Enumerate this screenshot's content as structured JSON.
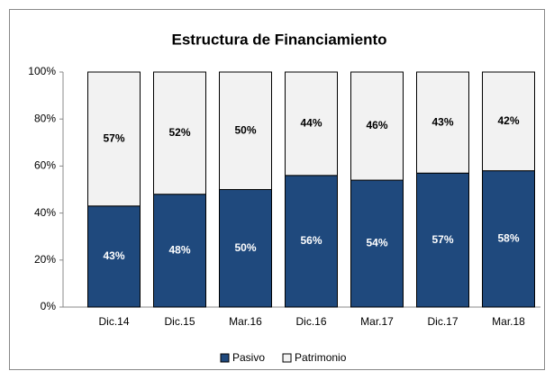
{
  "chart_data": {
    "type": "stacked_bar",
    "title": "Estructura de Financiamiento",
    "categories": [
      "Dic.14",
      "Dic.15",
      "Mar.16",
      "Dic.16",
      "Mar.17",
      "Dic.17",
      "Mar.18"
    ],
    "series": [
      {
        "name": "Pasivo",
        "color": "#1f497d",
        "label_color": "#ffffff",
        "values": [
          43,
          48,
          50,
          56,
          54,
          57,
          58
        ],
        "value_labels": [
          "43%",
          "48%",
          "50%",
          "56%",
          "54%",
          "57%",
          "58%"
        ]
      },
      {
        "name": "Patrimonio",
        "color": "#f2f2f2",
        "label_color": "#000000",
        "values": [
          57,
          52,
          50,
          44,
          46,
          43,
          42
        ],
        "value_labels": [
          "57%",
          "52%",
          "50%",
          "44%",
          "46%",
          "43%",
          "42%"
        ]
      }
    ],
    "ylim": [
      0,
      100
    ],
    "yticks": [
      {
        "value": 0,
        "label": "0%"
      },
      {
        "value": 20,
        "label": "20%"
      },
      {
        "value": 40,
        "label": "40%"
      },
      {
        "value": 60,
        "label": "60%"
      },
      {
        "value": 80,
        "label": "80%"
      },
      {
        "value": 100,
        "label": "100%"
      }
    ],
    "grid": false,
    "legend": "bottom"
  }
}
